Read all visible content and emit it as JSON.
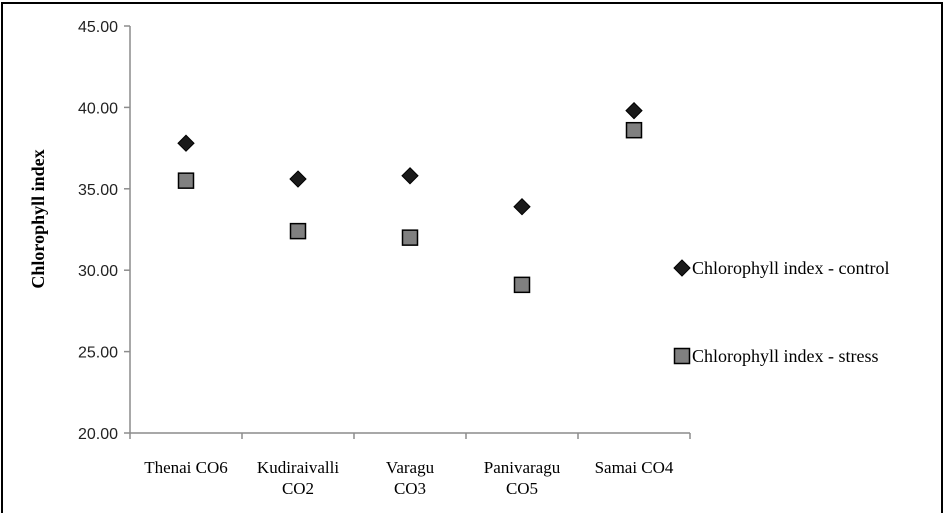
{
  "chart_data": {
    "type": "scatter",
    "categories": [
      "Thenai CO6",
      "Kudiraivalli CO2",
      "Varagu CO3",
      "Panivaragu CO5",
      "Samai CO4"
    ],
    "category_lines": [
      [
        "Thenai CO6"
      ],
      [
        "Kudiraivalli",
        "CO2"
      ],
      [
        "Varagu",
        "CO3"
      ],
      [
        "Panivaragu",
        "CO5"
      ],
      [
        "Samai CO4"
      ]
    ],
    "series": [
      {
        "name": "Chlorophyll index - control",
        "marker": "diamond",
        "color": "#1a1a1a",
        "values": [
          37.8,
          35.6,
          35.8,
          33.9,
          39.8
        ]
      },
      {
        "name": "Chlorophyll index - stress",
        "marker": "square",
        "color": "#808080",
        "values": [
          35.5,
          32.4,
          32.0,
          29.1,
          38.6
        ]
      }
    ],
    "ylabel": "Chlorophyll index",
    "ylim": [
      20,
      45
    ],
    "yticks": [
      "20.00",
      "25.00",
      "30.00",
      "35.00",
      "40.00",
      "45.00"
    ],
    "grid": false,
    "legend_position": "right"
  }
}
